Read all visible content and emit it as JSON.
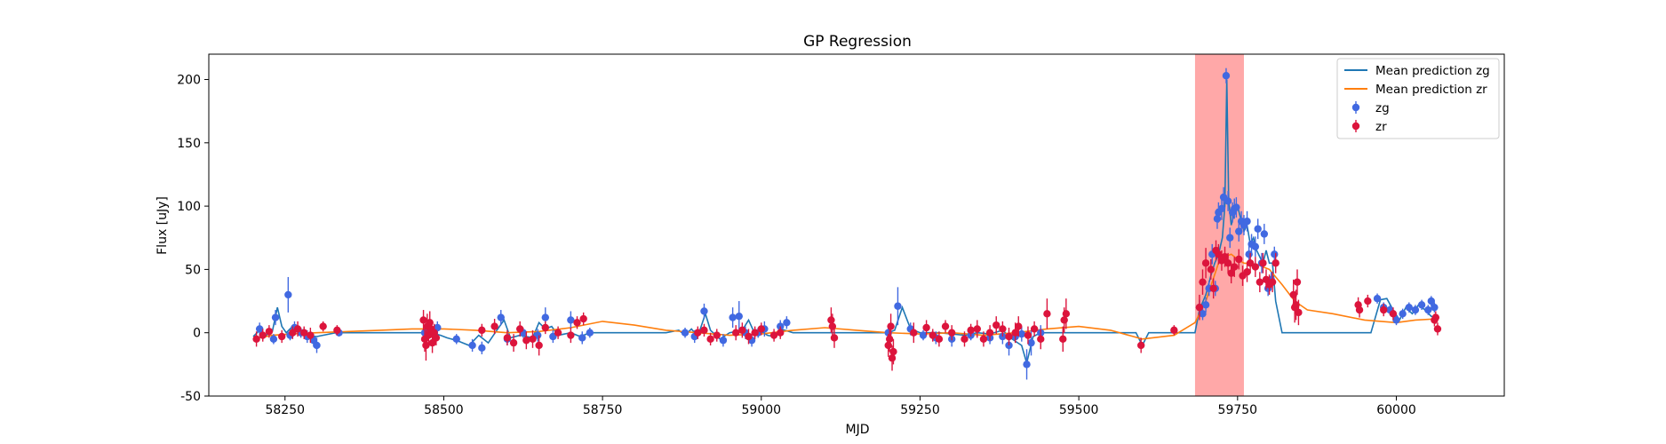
{
  "chart_data": {
    "type": "scatter",
    "title": "GP Regression",
    "xlabel": "MJD",
    "ylabel": "Flux [uJy]",
    "xlim": [
      58130,
      60170
    ],
    "ylim": [
      -50,
      220
    ],
    "xticks": [
      58250,
      58500,
      58750,
      59000,
      59250,
      59500,
      59750,
      60000
    ],
    "yticks": [
      -50,
      0,
      50,
      100,
      150,
      200
    ],
    "highlight_region": {
      "x": [
        59683,
        59760
      ],
      "color": "#ff9999"
    },
    "legend": {
      "placement": "top-right"
    },
    "colors": {
      "zg": "#4169e1",
      "zr": "#dc143c",
      "mean_zg": "#1f77b4",
      "mean_zr": "#ff7f0e"
    },
    "series": [
      {
        "name": "Mean prediction zg",
        "kind": "line",
        "color": "#1f77b4",
        "x": [
          58200,
          58210,
          58220,
          58230,
          58238,
          58245,
          58252,
          58260,
          58270,
          58280,
          58300,
          58330,
          58360,
          58400,
          58450,
          58480,
          58495,
          58505,
          58520,
          58540,
          58555,
          58570,
          58585,
          58595,
          58605,
          58620,
          58640,
          58650,
          58660,
          58670,
          58680,
          58700,
          58715,
          58730,
          58750,
          58800,
          58850,
          58870,
          58880,
          58890,
          58900,
          58912,
          58920,
          58935,
          58950,
          58970,
          58980,
          58990,
          59000,
          59010,
          59020,
          59030,
          59050,
          59100,
          59150,
          59200,
          59210,
          59222,
          59235,
          59250,
          59280,
          59300,
          59320,
          59340,
          59360,
          59380,
          59395,
          59410,
          59418,
          59428,
          59440,
          59460,
          59500,
          59550,
          59590,
          59600,
          59610,
          59650,
          59675,
          59683,
          59690,
          59700,
          59708,
          59714,
          59720,
          59726,
          59730,
          59733,
          59736,
          59740,
          59745,
          59750,
          59755,
          59760,
          59765,
          59770,
          59775,
          59780,
          59785,
          59790,
          59795,
          59800,
          59805,
          59810,
          59820,
          59830,
          59850,
          59900,
          59940,
          59960,
          59975,
          59985,
          59995,
          60005,
          60015,
          60025,
          60035,
          60045,
          60055,
          60065
        ],
        "y": [
          -3,
          2,
          -2,
          1,
          20,
          5,
          0,
          4,
          2,
          -2,
          -3,
          0,
          0,
          0,
          0,
          0,
          -2,
          -4,
          -6,
          -10,
          -2,
          -8,
          3,
          10,
          -4,
          -2,
          -4,
          8,
          3,
          5,
          -2,
          0,
          -3,
          0,
          0,
          0,
          0,
          2,
          -2,
          3,
          -3,
          15,
          2,
          -5,
          0,
          2,
          10,
          -1,
          1,
          -2,
          -3,
          3,
          0,
          0,
          0,
          0,
          2,
          20,
          3,
          0,
          0,
          -1,
          -2,
          0,
          -1,
          2,
          -5,
          -10,
          -24,
          -3,
          0,
          0,
          0,
          0,
          0,
          -10,
          0,
          0,
          0,
          0,
          18,
          30,
          45,
          55,
          62,
          75,
          100,
          200,
          105,
          85,
          95,
          100,
          90,
          80,
          85,
          70,
          75,
          65,
          60,
          55,
          65,
          55,
          55,
          25,
          0,
          0,
          0,
          0,
          0,
          0,
          26,
          27,
          18,
          10,
          20,
          15,
          22,
          18,
          13,
          12
        ]
      },
      {
        "name": "Mean prediction zr",
        "kind": "line",
        "color": "#ff7f0e",
        "x": [
          58200,
          58230,
          58260,
          58300,
          58350,
          58400,
          58450,
          58500,
          58550,
          58600,
          58650,
          58700,
          58750,
          58800,
          58850,
          58900,
          58950,
          59000,
          59050,
          59100,
          59150,
          59200,
          59250,
          59300,
          59350,
          59400,
          59450,
          59500,
          59550,
          59600,
          59650,
          59683,
          59700,
          59710,
          59720,
          59730,
          59740,
          59750,
          59760,
          59780,
          59800,
          59820,
          59840,
          59860,
          59900,
          59950,
          60000,
          60030,
          60065
        ],
        "y": [
          -5,
          -2,
          -1,
          0,
          1,
          2,
          3,
          3,
          2,
          0,
          1,
          4,
          9,
          6,
          2,
          0,
          -2,
          -1,
          2,
          4,
          2,
          0,
          -1,
          0,
          -2,
          0,
          3,
          5,
          2,
          -5,
          -2,
          8,
          25,
          40,
          55,
          60,
          62,
          58,
          55,
          54,
          50,
          38,
          25,
          18,
          15,
          10,
          8,
          10,
          11
        ]
      },
      {
        "name": "zg",
        "kind": "errorbar",
        "color": "#4169e1",
        "x": [
          58210,
          58232,
          58235,
          58255,
          58258,
          58265,
          58275,
          58285,
          58295,
          58300,
          58335,
          58470,
          58490,
          58520,
          58545,
          58560,
          58590,
          58600,
          58625,
          58648,
          58660,
          58672,
          58700,
          58718,
          58730,
          58880,
          58895,
          58910,
          58940,
          58955,
          58965,
          58975,
          58985,
          58995,
          59005,
          59030,
          59040,
          59200,
          59215,
          59235,
          59255,
          59275,
          59300,
          59330,
          59360,
          59380,
          59390,
          59400,
          59410,
          59418,
          59425,
          59440,
          59690,
          59695,
          59700,
          59705,
          59710,
          59715,
          59718,
          59720,
          59725,
          59728,
          59732,
          59735,
          59738,
          59742,
          59745,
          59748,
          59752,
          59756,
          59760,
          59765,
          59768,
          59772,
          59778,
          59782,
          59788,
          59792,
          59798,
          59803,
          59808,
          59970,
          59980,
          59990,
          60000,
          60010,
          60020,
          60030,
          60040,
          60050,
          60055,
          60060
        ],
        "y": [
          3,
          -5,
          12,
          30,
          -2,
          4,
          0,
          -3,
          -6,
          -10,
          0,
          0,
          4,
          -5,
          -10,
          -12,
          12,
          -5,
          0,
          -2,
          12,
          -3,
          10,
          -4,
          0,
          0,
          -3,
          17,
          -6,
          12,
          13,
          0,
          -6,
          0,
          3,
          5,
          8,
          0,
          21,
          3,
          -2,
          -4,
          -5,
          -2,
          -4,
          -3,
          -10,
          -3,
          -1,
          -25,
          -8,
          0,
          20,
          15,
          22,
          35,
          62,
          35,
          90,
          95,
          98,
          107,
          203,
          104,
          75,
          95,
          98,
          99,
          80,
          88,
          85,
          88,
          62,
          70,
          68,
          82,
          55,
          78,
          35,
          42,
          62,
          27,
          20,
          18,
          10,
          15,
          20,
          18,
          22,
          18,
          25,
          20
        ],
        "err": [
          5,
          4,
          6,
          14,
          4,
          5,
          4,
          5,
          5,
          6,
          3,
          6,
          5,
          4,
          5,
          5,
          6,
          5,
          4,
          5,
          8,
          5,
          7,
          5,
          4,
          4,
          5,
          6,
          5,
          8,
          12,
          5,
          5,
          4,
          6,
          5,
          5,
          5,
          15,
          5,
          4,
          5,
          6,
          4,
          5,
          6,
          8,
          5,
          6,
          12,
          10,
          6,
          6,
          5,
          6,
          6,
          8,
          6,
          8,
          8,
          9,
          8,
          6,
          8,
          8,
          8,
          8,
          8,
          8,
          8,
          8,
          8,
          8,
          8,
          8,
          8,
          8,
          8,
          6,
          6,
          6,
          4,
          4,
          4,
          4,
          4,
          4,
          4,
          4,
          4,
          4,
          4
        ]
      },
      {
        "name": "zr",
        "kind": "errorbar",
        "color": "#dc143c",
        "x": [
          58205,
          58215,
          58225,
          58245,
          58262,
          58270,
          58280,
          58290,
          58310,
          58332,
          58468,
          58470,
          58472,
          58474,
          58476,
          58478,
          58480,
          58482,
          58485,
          58488,
          58560,
          58580,
          58600,
          58610,
          58620,
          58630,
          58640,
          58650,
          58660,
          58680,
          58700,
          58710,
          58720,
          58900,
          58910,
          58920,
          58930,
          58960,
          58970,
          58980,
          58990,
          59000,
          59020,
          59030,
          59110,
          59112,
          59115,
          59200,
          59202,
          59204,
          59206,
          59208,
          59240,
          59260,
          59270,
          59280,
          59290,
          59300,
          59320,
          59330,
          59340,
          59350,
          59360,
          59370,
          59380,
          59390,
          59400,
          59405,
          59420,
          59430,
          59440,
          59450,
          59475,
          59477,
          59480,
          59598,
          59650,
          59690,
          59695,
          59700,
          59708,
          59712,
          59716,
          59720,
          59725,
          59730,
          59735,
          59740,
          59745,
          59752,
          59758,
          59765,
          59770,
          59778,
          59785,
          59790,
          59795,
          59800,
          59805,
          59810,
          59838,
          59840,
          59842,
          59844,
          59846,
          59940,
          59942,
          59955,
          59980,
          59995,
          60060,
          60062,
          60065
        ],
        "y": [
          -5,
          -2,
          1,
          -3,
          0,
          3,
          0,
          -2,
          5,
          2,
          10,
          -5,
          -10,
          5,
          -2,
          8,
          3,
          -8,
          0,
          -4,
          2,
          5,
          -4,
          -8,
          3,
          -6,
          -5,
          -10,
          4,
          0,
          -2,
          8,
          11,
          0,
          2,
          -5,
          -2,
          0,
          2,
          -3,
          0,
          3,
          -2,
          0,
          10,
          5,
          -4,
          -10,
          -5,
          5,
          -20,
          -15,
          0,
          4,
          -2,
          -5,
          5,
          0,
          -5,
          2,
          3,
          -5,
          0,
          6,
          3,
          -3,
          0,
          5,
          -2,
          3,
          -5,
          15,
          -5,
          10,
          15,
          -10,
          2,
          20,
          40,
          55,
          50,
          35,
          65,
          62,
          57,
          60,
          55,
          47,
          52,
          58,
          45,
          48,
          55,
          52,
          40,
          55,
          42,
          38,
          40,
          55,
          30,
          20,
          22,
          40,
          16,
          22,
          18,
          25,
          18,
          15,
          10,
          12,
          3
        ],
        "err": [
          6,
          5,
          5,
          5,
          5,
          6,
          5,
          6,
          4,
          4,
          8,
          10,
          12,
          10,
          8,
          9,
          7,
          8,
          7,
          6,
          5,
          6,
          6,
          7,
          6,
          7,
          7,
          8,
          5,
          5,
          6,
          5,
          5,
          5,
          5,
          5,
          5,
          6,
          6,
          6,
          5,
          5,
          5,
          5,
          10,
          10,
          8,
          9,
          10,
          10,
          10,
          10,
          8,
          6,
          5,
          6,
          5,
          6,
          6,
          5,
          7,
          6,
          6,
          7,
          6,
          7,
          8,
          8,
          7,
          6,
          8,
          12,
          10,
          10,
          12,
          6,
          4,
          10,
          10,
          12,
          8,
          8,
          8,
          8,
          8,
          8,
          8,
          8,
          8,
          8,
          8,
          8,
          8,
          8,
          8,
          8,
          8,
          8,
          8,
          8,
          12,
          12,
          12,
          10,
          10,
          6,
          6,
          5,
          5,
          5,
          5,
          5,
          5
        ]
      }
    ]
  }
}
